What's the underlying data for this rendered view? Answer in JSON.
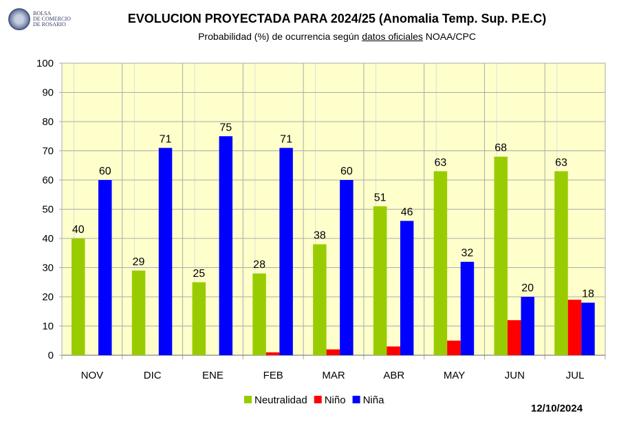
{
  "logo": {
    "lines": [
      "BOLSA",
      "DE COMERCIO",
      "DE ROSARIO"
    ]
  },
  "chart_data": {
    "type": "bar",
    "title": "EVOLUCION PROYECTADA PARA 2024/25 (Anomalia Temp. Sup. P.E.C)",
    "subtitle_pre": "Probabilidad (%) de ocurrencia según ",
    "subtitle_link": "datos oficiales",
    "subtitle_post": " NOAA/CPC",
    "categories": [
      "NOV",
      "DIC",
      "ENE",
      "FEB",
      "MAR",
      "ABR",
      "MAY",
      "JUN",
      "JUL"
    ],
    "series": [
      {
        "name": "Neutralidad",
        "color": "#99cc00",
        "values": [
          40,
          29,
          25,
          28,
          38,
          51,
          63,
          68,
          63
        ],
        "labels": true
      },
      {
        "name": "Niño",
        "color": "#ff0000",
        "values": [
          0,
          0,
          0,
          1,
          2,
          3,
          5,
          12,
          19
        ],
        "labels": false
      },
      {
        "name": "Niña",
        "color": "#0000ff",
        "values": [
          60,
          71,
          75,
          71,
          60,
          46,
          32,
          20,
          18
        ],
        "labels": true
      }
    ],
    "ylim": [
      0,
      100
    ],
    "yticks": [
      0,
      10,
      20,
      30,
      40,
      50,
      60,
      70,
      80,
      90,
      100
    ],
    "grid": true,
    "legend": "bottom",
    "xlabel": "",
    "ylabel": ""
  },
  "date": "12/10/2024"
}
